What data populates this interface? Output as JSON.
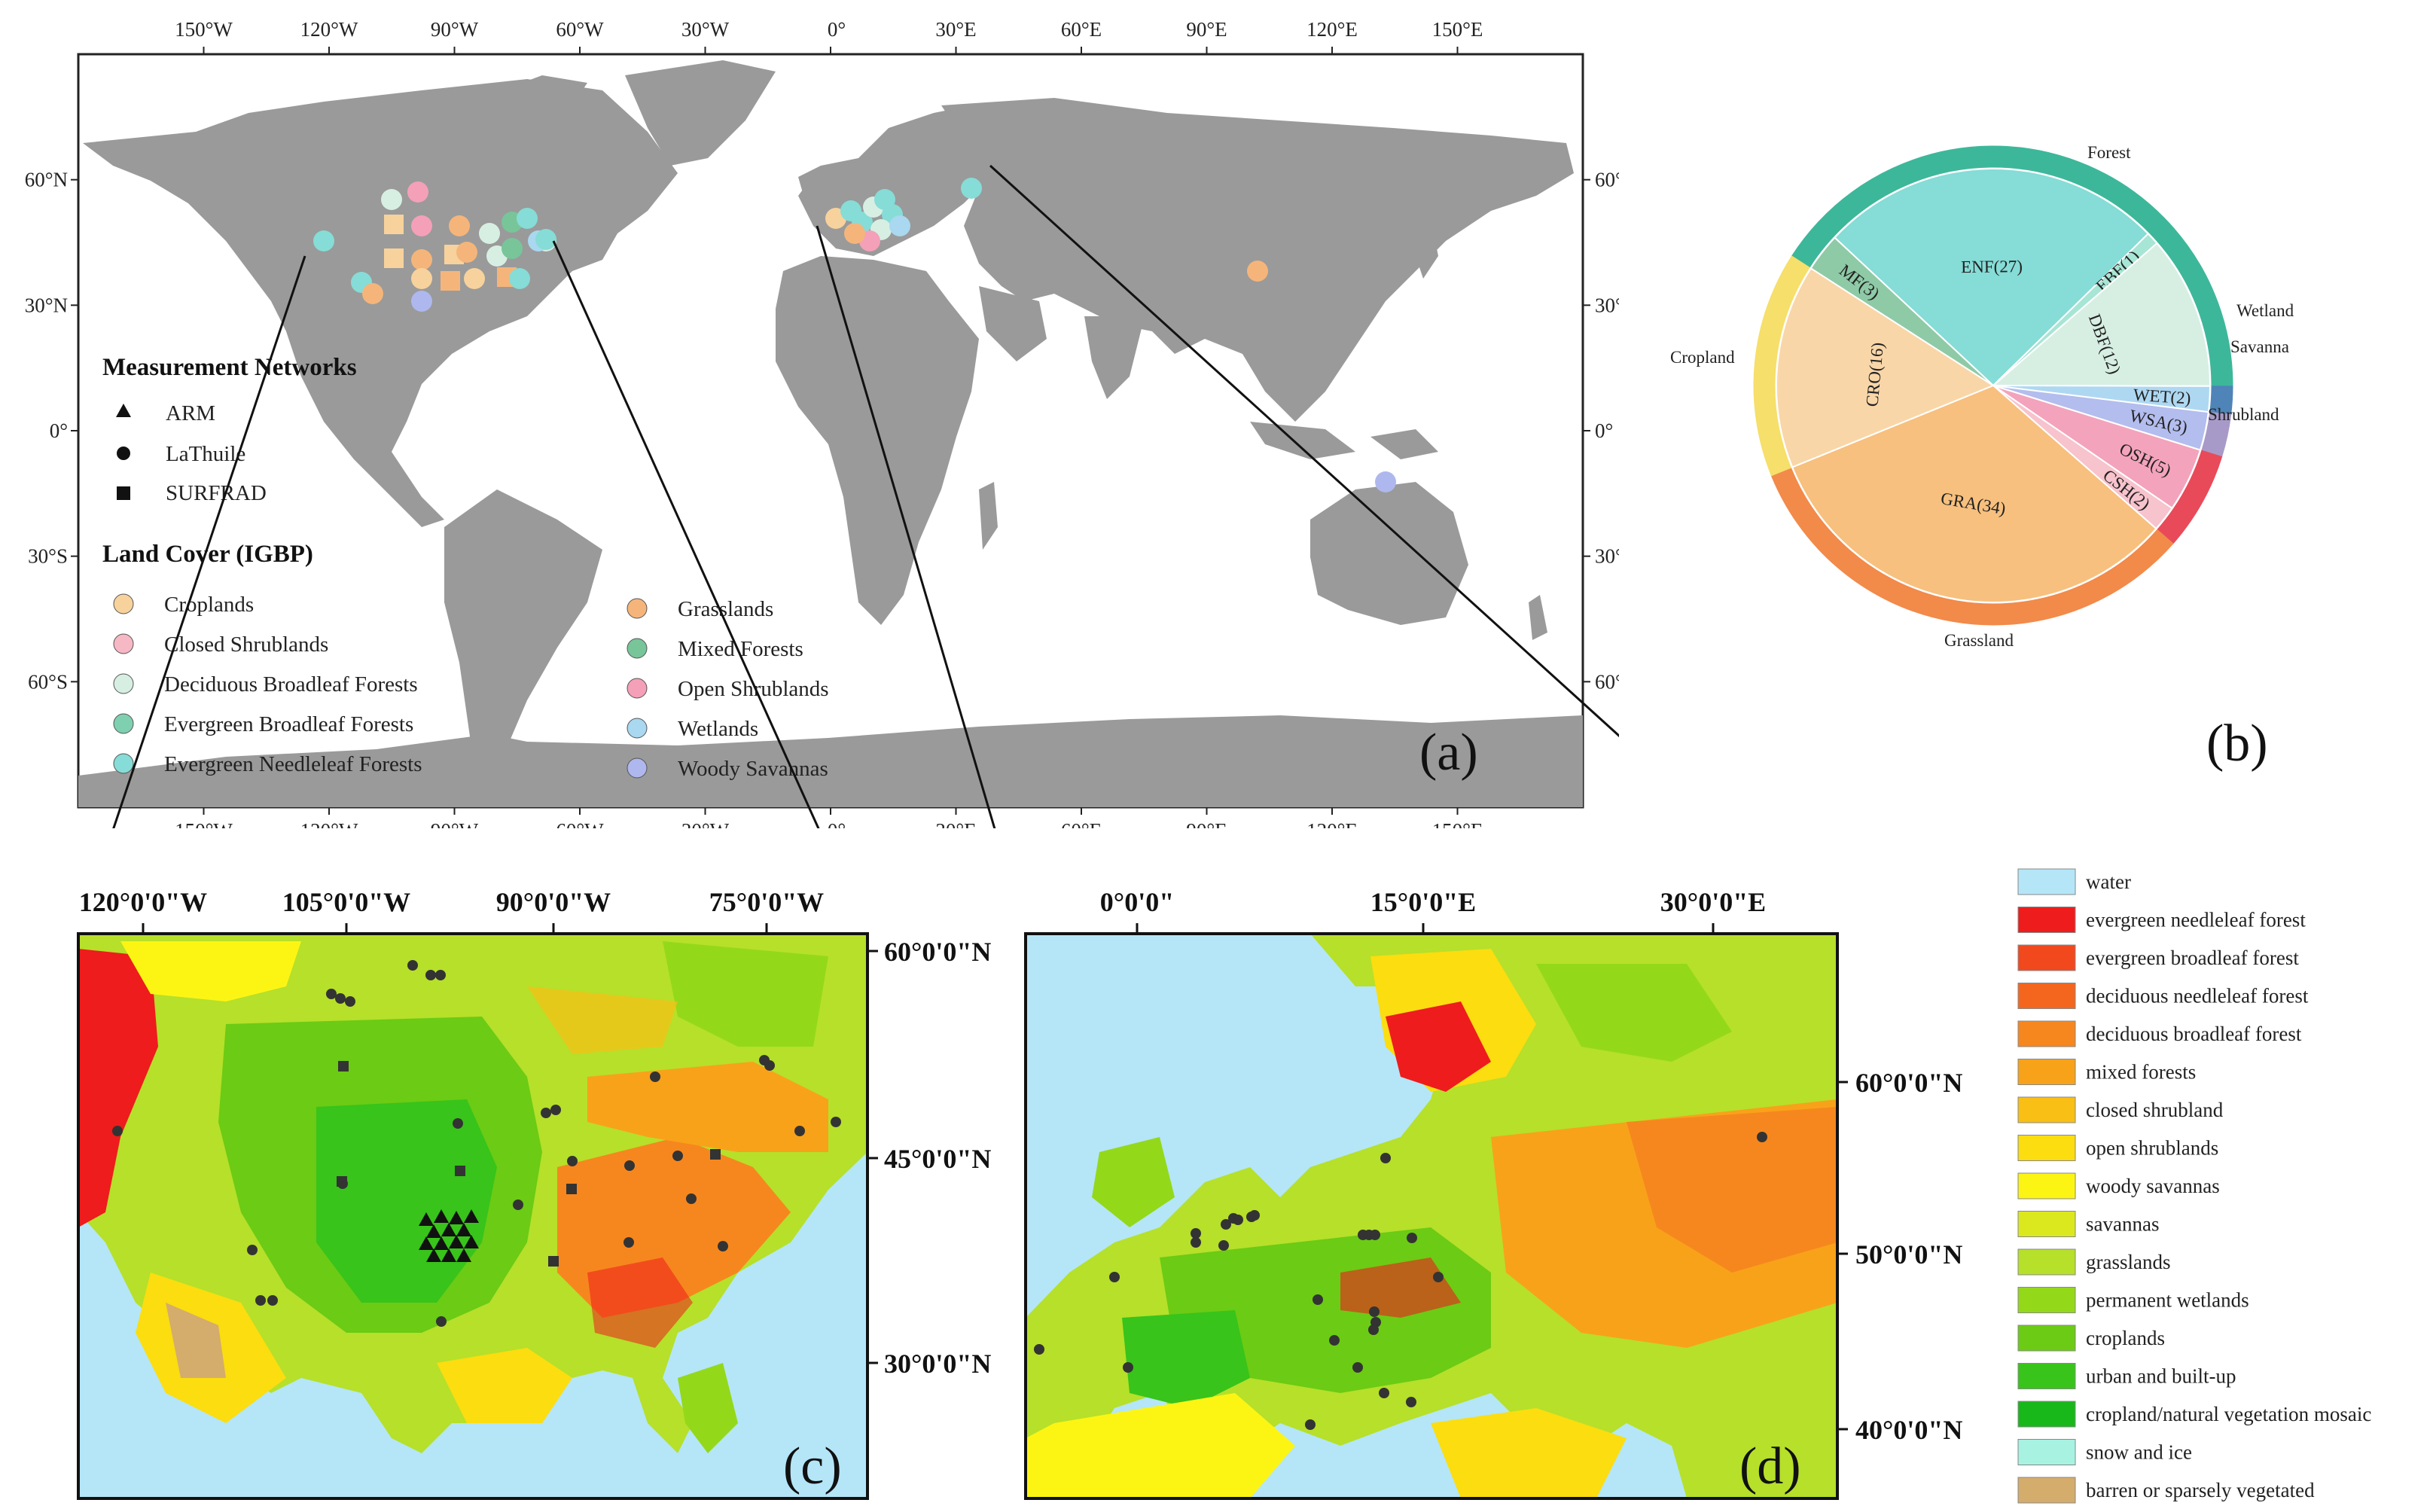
{
  "panel_a": {
    "label": "(a)",
    "lon_ticks": [
      "150°W",
      "120°W",
      "90°W",
      "60°W",
      "30°W",
      "0°",
      "30°E",
      "60°E",
      "90°E",
      "120°E",
      "150°E"
    ],
    "lat_ticks": [
      "60°N",
      "30°N",
      "0°",
      "30°S",
      "60°S"
    ],
    "legend": {
      "networks_title": "Measurement Networks",
      "networks": [
        "ARM",
        "LaThuile",
        "SURFRAD"
      ],
      "landcover_title": "Land Cover (IGBP)",
      "classes_left": [
        "Croplands",
        "Closed Shrublands",
        "Deciduous Broadleaf Forests",
        "Evergreen Broadleaf Forests",
        "Evergreen Needleleaf Forests"
      ],
      "classes_right": [
        "Grasslands",
        "Mixed Forests",
        "Open Shrublands",
        "Wetlands",
        "Woody Savannas"
      ]
    },
    "colors": {
      "land": "#9a9a9a",
      "croplands": "#f7d29c",
      "closed_shrublands": "#f6b8c4",
      "deciduous_broadleaf": "#d7efe3",
      "evergreen_broadleaf": "#7fd0b0",
      "evergreen_needleleaf": "#86dcd6",
      "grasslands": "#f5b57a",
      "mixed_forests": "#78c59a",
      "open_shrublands": "#f4a0b8",
      "wetlands": "#a9d8f0",
      "woody_savannas": "#aeb8ee"
    }
  },
  "panel_b": {
    "label": "(b)",
    "chart_data": {
      "type": "pie",
      "slices": [
        {
          "label": "ENF(27)",
          "value": 27,
          "group": "Forest",
          "color": "#86dcd6"
        },
        {
          "label": "EBF(1)",
          "value": 1,
          "group": "Forest",
          "color": "#a7e5d4"
        },
        {
          "label": "DBF(12)",
          "value": 12,
          "group": "Forest",
          "color": "#d7efe3"
        },
        {
          "label": "WET(2)",
          "value": 2,
          "group": "Wetland",
          "color": "#aed8f2"
        },
        {
          "label": "WSA(3)",
          "value": 3,
          "group": "Savanna",
          "color": "#b3bdee"
        },
        {
          "label": "OSH(5)",
          "value": 5,
          "group": "Shrubland",
          "color": "#f4a3bc"
        },
        {
          "label": "CSH(2)",
          "value": 2,
          "group": "Shrubland",
          "color": "#f7c3cd"
        },
        {
          "label": "GRA(34)",
          "value": 34,
          "group": "Grassland",
          "color": "#f7c07e"
        },
        {
          "label": "CRO(16)",
          "value": 16,
          "group": "Cropland",
          "color": "#f9d6a8"
        },
        {
          "label": "MF(3)",
          "value": 3,
          "group": "Forest",
          "color": "#8ecaa6"
        }
      ],
      "groups": [
        {
          "name": "Forest",
          "color": "#3db79a"
        },
        {
          "name": "Wetland",
          "color": "#4f84b8"
        },
        {
          "name": "Savanna",
          "color": "#a89ac8"
        },
        {
          "name": "Shrubland",
          "color": "#e84a5a"
        },
        {
          "name": "Grassland",
          "color": "#f28a4a"
        },
        {
          "name": "Cropland",
          "color": "#f6df6a"
        }
      ]
    }
  },
  "panel_c": {
    "label": "(c)",
    "lon_ticks": [
      "120°0'0\"W",
      "105°0'0\"W",
      "90°0'0\"W",
      "75°0'0\"W"
    ],
    "lat_ticks": [
      "60°0'0\"N",
      "45°0'0\"N",
      "30°0'0\"N"
    ]
  },
  "panel_d": {
    "label": "(d)",
    "lon_ticks": [
      "0°0'0\"",
      "15°0'0\"E",
      "30°0'0\"E"
    ],
    "lat_ticks": [
      "60°0'0\"N",
      "50°0'0\"N",
      "40°0'0\"N"
    ]
  },
  "landcover_legend": {
    "items": [
      {
        "name": "water",
        "color": "#b4e6f8"
      },
      {
        "name": "evergreen needleleaf forest",
        "color": "#ee1c1c"
      },
      {
        "name": "evergreen broadleaf forest",
        "color": "#f2481e"
      },
      {
        "name": "deciduous needleleaf forest",
        "color": "#f4661e"
      },
      {
        "name": "deciduous broadleaf forest",
        "color": "#f6871e"
      },
      {
        "name": "mixed forests",
        "color": "#f8a21a"
      },
      {
        "name": "closed shrubland",
        "color": "#f9bf14"
      },
      {
        "name": "open shrublands",
        "color": "#fbdd10"
      },
      {
        "name": "woody savannas",
        "color": "#fcf514"
      },
      {
        "name": "savannas",
        "color": "#dbe81e"
      },
      {
        "name": "grasslands",
        "color": "#b6e02a"
      },
      {
        "name": "permanent wetlands",
        "color": "#94d81a"
      },
      {
        "name": "croplands",
        "color": "#6ccb14"
      },
      {
        "name": "urban and built-up",
        "color": "#38c41a"
      },
      {
        "name": "cropland/natural vegetation mosaic",
        "color": "#18b81a"
      },
      {
        "name": "snow and ice",
        "color": "#a8f2e2"
      },
      {
        "name": "barren or sparsely vegetated",
        "color": "#d4ac6c"
      }
    ]
  }
}
